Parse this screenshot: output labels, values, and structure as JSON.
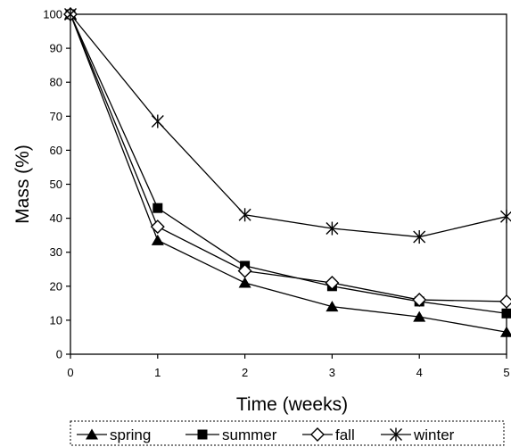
{
  "chart_data": {
    "type": "line",
    "xlabel": "Time  (weeks)",
    "ylabel": "Mass (%)",
    "x": [
      0,
      1,
      2,
      3,
      4,
      5
    ],
    "xlim": [
      0,
      5
    ],
    "ylim": [
      0,
      100
    ],
    "xticks": [
      "0",
      "1",
      "2",
      "3",
      "4",
      "5"
    ],
    "yticks": [
      "0",
      "10",
      "20",
      "30",
      "40",
      "50",
      "60",
      "70",
      "80",
      "90",
      "100"
    ],
    "grid": false,
    "legend_position": "bottom",
    "series": [
      {
        "name": "spring",
        "marker": "filled-triangle",
        "color": "#000000",
        "values": [
          100,
          33.5,
          21,
          14,
          11,
          6.5
        ]
      },
      {
        "name": "summer",
        "marker": "filled-square",
        "color": "#000000",
        "values": [
          100,
          43,
          26,
          20,
          15.5,
          12
        ]
      },
      {
        "name": "fall",
        "marker": "open-diamond",
        "color": "#000000",
        "values": [
          100,
          37.5,
          24.5,
          21,
          16,
          15.5
        ]
      },
      {
        "name": "winter",
        "marker": "asterisk",
        "color": "#000000",
        "values": [
          100,
          68.5,
          41,
          37,
          34.5,
          40.5
        ]
      }
    ]
  }
}
